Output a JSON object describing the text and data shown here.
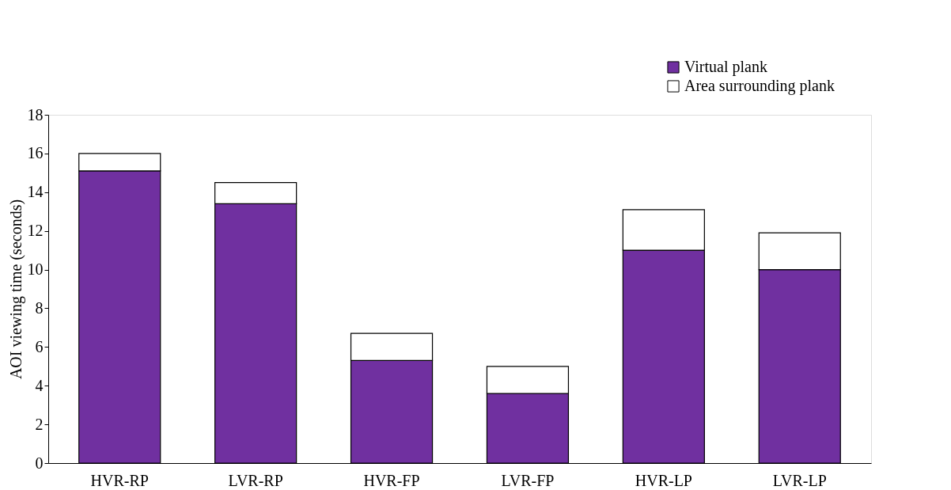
{
  "chart_data": {
    "type": "bar",
    "stacked": true,
    "ylabel": "AOI viewing time (seconds)",
    "categories": [
      "HVR-RP",
      "LVR-RP",
      "HVR-FP",
      "LVR-FP",
      "HVR-LP",
      "LVR-LP"
    ],
    "series": [
      {
        "name": "Virtual plank",
        "color": "#7030a0",
        "values": [
          15.1,
          13.4,
          5.3,
          3.6,
          11.0,
          10.0
        ]
      },
      {
        "name": "Area surrounding plank",
        "color": "#ffffff",
        "values": [
          0.9,
          1.1,
          1.4,
          1.4,
          2.1,
          1.9
        ]
      }
    ],
    "ylim": [
      0,
      18
    ],
    "yticks": [
      0,
      2,
      4,
      6,
      8,
      10,
      12,
      14,
      16,
      18
    ],
    "grid": false,
    "legend": "top right"
  }
}
